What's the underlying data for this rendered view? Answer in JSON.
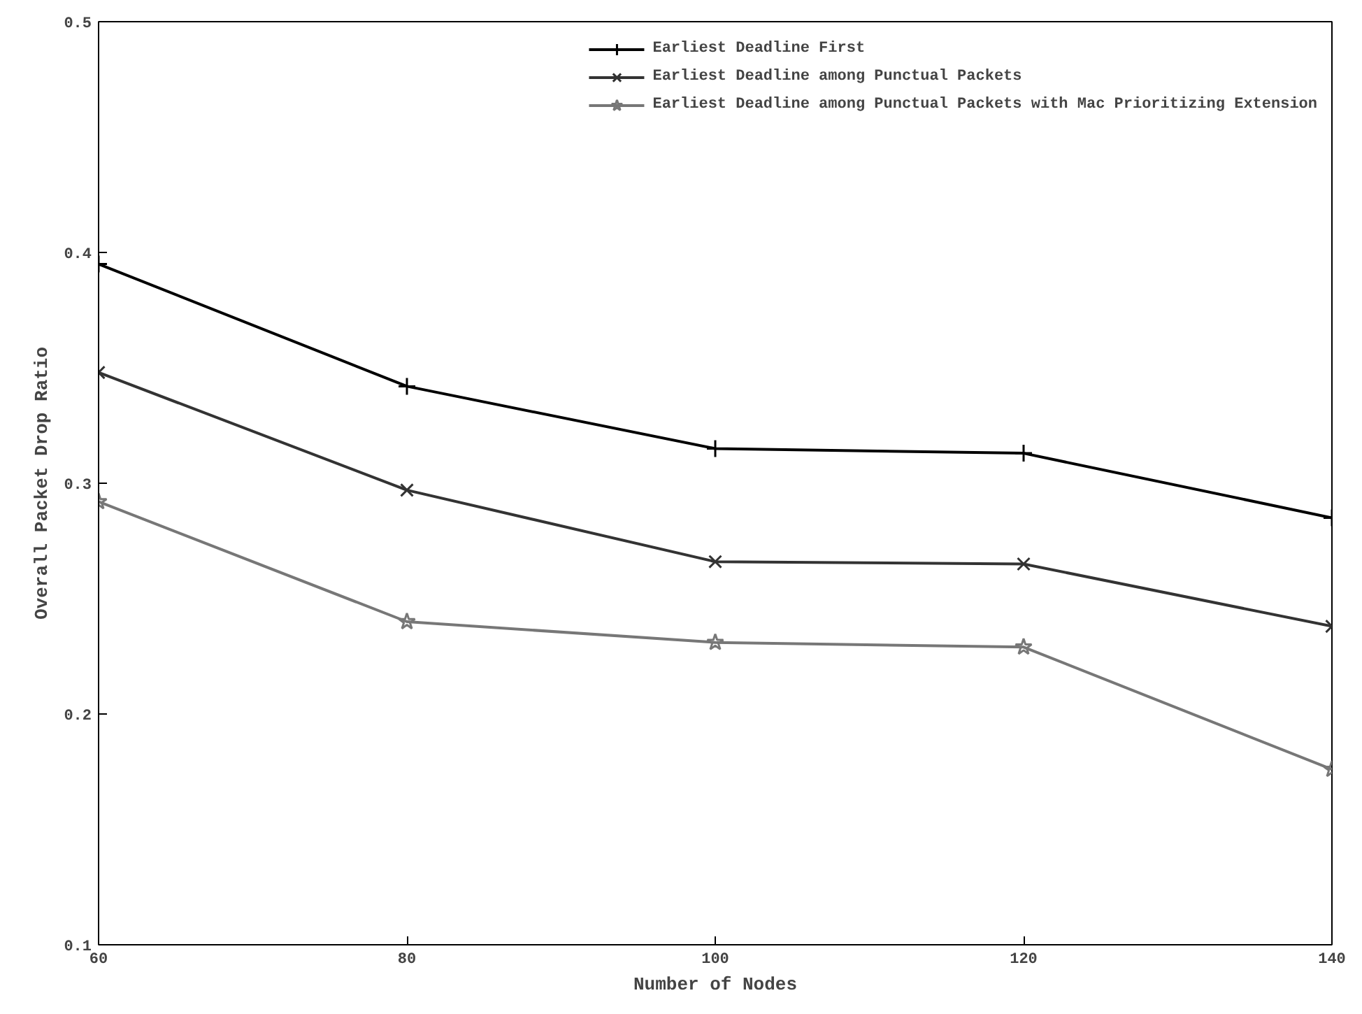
{
  "chart_data": {
    "type": "line",
    "xlabel": "Number of Nodes",
    "ylabel": "Overall Packet Drop Ratio",
    "x": [
      60,
      80,
      100,
      120,
      140
    ],
    "series": [
      {
        "name": "Earliest Deadline First",
        "color": "#000000",
        "marker": "cross",
        "values": [
          0.395,
          0.342,
          0.315,
          0.313,
          0.285
        ]
      },
      {
        "name": "Earliest Deadline among Punctual Packets",
        "color": "#333333",
        "marker": "x",
        "values": [
          0.348,
          0.297,
          0.266,
          0.265,
          0.238
        ]
      },
      {
        "name": "Earliest Deadline among Punctual Packets with Mac Prioritizing Extension",
        "color": "#777777",
        "marker": "star",
        "values": [
          0.292,
          0.24,
          0.231,
          0.229,
          0.176
        ]
      }
    ],
    "xlim": [
      60,
      140
    ],
    "xticks": [
      60,
      80,
      100,
      120,
      140
    ],
    "ylim": [
      0.1,
      0.5
    ],
    "yticks": [
      {
        "value": 0.1,
        "label": "0.1"
      },
      {
        "value": 0.2,
        "label": "0.2"
      },
      {
        "value": 0.3,
        "label": "0.3"
      },
      {
        "value": 0.4,
        "label": "0.4"
      },
      {
        "value": 0.5,
        "label": "0.5"
      }
    ],
    "grid": false,
    "legend": "top right",
    "line_style": "solid"
  }
}
